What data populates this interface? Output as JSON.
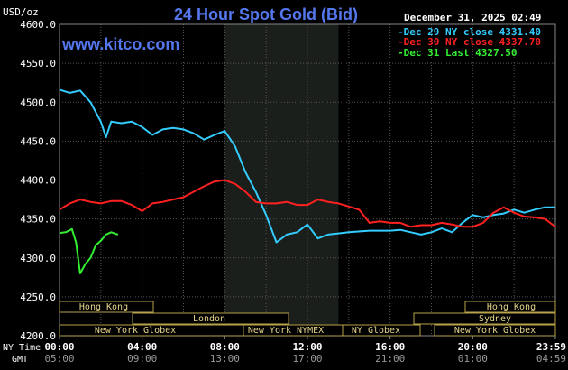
{
  "header": {
    "units": "USD/oz",
    "title": "24 Hour Spot Gold (Bid)",
    "timestamp": "December 31, 2025 02:49",
    "watermark": "www.kitco.com"
  },
  "legend": [
    {
      "text": "Dec 29 NY close 4331.40",
      "color": "#33ccff"
    },
    {
      "text": "Dec 30 NY close 4337.70",
      "color": "#ff2020"
    },
    {
      "text": "Dec 31 Last 4327.50",
      "color": "#33ee33"
    }
  ],
  "sessions": [
    {
      "label": "Hong Kong"
    },
    {
      "label": "London"
    },
    {
      "label": "New York Globex"
    },
    {
      "label": "New York NYMEX"
    },
    {
      "label": "NY Globex"
    },
    {
      "label": "Hong Kong"
    },
    {
      "label": "Sydney"
    },
    {
      "label": "New York Globex"
    }
  ],
  "time_rows": {
    "ny_label": "NY Time",
    "gmt_label": "GMT",
    "ny_ticks": [
      "00:00",
      "04:00",
      "08:00",
      "12:00",
      "16:00",
      "20:00",
      "23:59"
    ],
    "gmt_ticks": [
      "05:00",
      "09:00",
      "13:00",
      "17:00",
      "21:00",
      "01:00",
      "04:59"
    ]
  },
  "chart_data": {
    "type": "line",
    "title": "24 Hour Spot Gold (Bid)",
    "ylabel": "USD/oz",
    "ylim": [
      4200,
      4600
    ],
    "yticks": [
      4200,
      4250,
      4300,
      4350,
      4400,
      4450,
      4500,
      4550,
      4600
    ],
    "ytick_labels": [
      "4200.0",
      "4250.0",
      "4300.0",
      "4350.0",
      "4400.0",
      "4450.0",
      "4500.0",
      "4550.0",
      "4600.0"
    ],
    "x_unit": "hours since 00:00 NY",
    "xlim": [
      0,
      24
    ],
    "xticks": [
      0,
      4,
      8,
      12,
      16,
      20,
      24
    ],
    "xtick_labels": [
      "00:00",
      "04:00",
      "08:00",
      "12:00",
      "16:00",
      "20:00",
      "23:59"
    ],
    "highlight_band": [
      8,
      13.5
    ],
    "grid": true,
    "series": [
      {
        "name": "Dec 29 NY close 4331.40",
        "color": "#33ccff",
        "x": [
          0,
          0.5,
          1,
          1.5,
          2,
          2.25,
          2.5,
          3,
          3.5,
          4,
          4.5,
          5,
          5.5,
          6,
          6.5,
          7,
          7.5,
          8,
          8.5,
          9,
          9.5,
          10,
          10.5,
          11,
          11.5,
          12,
          12.5,
          13,
          14,
          15,
          16,
          16.5,
          17,
          17.5,
          18,
          18.5,
          19,
          19.5,
          20,
          20.5,
          21,
          21.5,
          22,
          22.5,
          23,
          23.5,
          24
        ],
        "y": [
          4516,
          4512,
          4515,
          4500,
          4475,
          4455,
          4475,
          4473,
          4475,
          4468,
          4458,
          4465,
          4467,
          4465,
          4460,
          4452,
          4458,
          4463,
          4443,
          4410,
          4385,
          4355,
          4320,
          4330,
          4333,
          4343,
          4325,
          4330,
          4333,
          4335,
          4335,
          4336,
          4333,
          4330,
          4333,
          4338,
          4333,
          4345,
          4355,
          4352,
          4355,
          4357,
          4362,
          4358,
          4362,
          4365,
          4365
        ]
      },
      {
        "name": "Dec 30 NY close 4337.70",
        "color": "#ff2020",
        "x": [
          0,
          0.5,
          1,
          1.5,
          2,
          2.5,
          3,
          3.5,
          4,
          4.5,
          5,
          5.5,
          6,
          6.5,
          7,
          7.5,
          8,
          8.5,
          9,
          9.5,
          10,
          10.5,
          11,
          11.5,
          12,
          12.5,
          13,
          13.5,
          14,
          14.5,
          15,
          15.5,
          16,
          16.5,
          17,
          17.5,
          18,
          18.5,
          19,
          19.5,
          20,
          20.5,
          21,
          21.5,
          22,
          22.5,
          23,
          23.5,
          24
        ],
        "y": [
          4362,
          4370,
          4375,
          4372,
          4370,
          4373,
          4373,
          4368,
          4360,
          4370,
          4372,
          4375,
          4378,
          4385,
          4392,
          4398,
          4400,
          4395,
          4385,
          4372,
          4370,
          4370,
          4372,
          4368,
          4368,
          4375,
          4372,
          4370,
          4366,
          4362,
          4345,
          4347,
          4345,
          4345,
          4340,
          4342,
          4342,
          4345,
          4343,
          4340,
          4340,
          4345,
          4358,
          4365,
          4358,
          4353,
          4352,
          4350,
          4340
        ]
      },
      {
        "name": "Dec 31 Last 4327.50",
        "color": "#33ee33",
        "x": [
          0,
          0.3,
          0.6,
          0.8,
          1,
          1.25,
          1.5,
          1.75,
          2,
          2.25,
          2.5,
          2.83
        ],
        "y": [
          4332,
          4333,
          4337,
          4320,
          4280,
          4292,
          4300,
          4316,
          4322,
          4330,
          4333,
          4330
        ]
      }
    ]
  }
}
